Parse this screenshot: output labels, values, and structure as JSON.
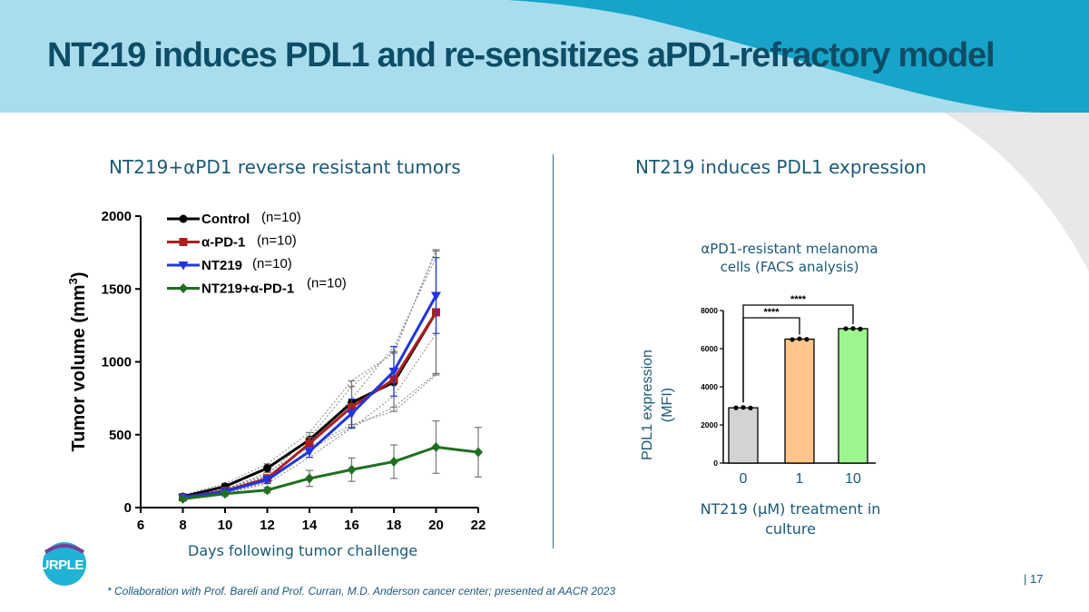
{
  "slide": {
    "title": "NT219 induces PDL1 and re-sensitizes aPD1-refractory model",
    "left_subtitle": "NT219+αPD1 reverse resistant tumors",
    "right_subtitle": "NT219 induces PDL1 expression",
    "footnote": "* Collaboration with Prof. Bareli and Prof. Curran, M.D. Anderson cancer center; presented at AACR 2023",
    "page_number": "| 17",
    "logo_text": "PURPLE",
    "colors": {
      "header_light": "#a9ddee",
      "header_teal": "#1a9ac0",
      "title": "#0e4d66",
      "text": "#1a5a7a",
      "grey_shape": "#e6e6e6"
    }
  },
  "chart_data": [
    {
      "type": "line",
      "xlabel": "Days following tumor challenge",
      "ylabel": "Tumor volume (mm",
      "ylabel_sup": "3",
      "ylabel_close": ")",
      "xlim": [
        6,
        22
      ],
      "ylim": [
        0,
        2000
      ],
      "xticks": [
        6,
        8,
        10,
        12,
        14,
        16,
        18,
        20,
        22
      ],
      "yticks": [
        0,
        500,
        1000,
        1500,
        2000
      ],
      "legend_position": "top-left",
      "series": [
        {
          "name": "Control",
          "n": "(n=10)",
          "color": "#000000",
          "marker": "circle",
          "x": [
            8,
            10,
            12,
            14,
            16,
            18,
            20
          ],
          "y": [
            75,
            145,
            270,
            465,
            720,
            860,
            1340
          ],
          "err": [
            10,
            20,
            30,
            50,
            150,
            200,
            430
          ]
        },
        {
          "name": "α-PD-1",
          "n": "(n=10)",
          "color": "#b01e1e",
          "marker": "square",
          "x": [
            8,
            10,
            12,
            14,
            16,
            18,
            20
          ],
          "y": [
            70,
            115,
            200,
            440,
            690,
            880,
            1340
          ],
          "err": [
            10,
            15,
            25,
            40,
            140,
            190,
            420
          ]
        },
        {
          "name": "NT219",
          "n": "(n=10)",
          "color": "#1f35e0",
          "marker": "triangle-down",
          "x": [
            8,
            10,
            12,
            14,
            16,
            18,
            20
          ],
          "y": [
            70,
            110,
            190,
            385,
            645,
            935,
            1455
          ],
          "err": [
            10,
            15,
            25,
            40,
            100,
            170,
            260
          ]
        },
        {
          "name": "NT219+α-PD-1",
          "n": "(n=10)",
          "color": "#1f6f1f",
          "marker": "diamond",
          "x": [
            8,
            10,
            12,
            14,
            16,
            18,
            20,
            22
          ],
          "y": [
            60,
            95,
            120,
            200,
            260,
            315,
            415,
            380
          ],
          "err": [
            10,
            15,
            20,
            55,
            80,
            115,
            180,
            170
          ]
        }
      ]
    },
    {
      "type": "bar",
      "title": "αPD1-resistant melanoma cells (FACS analysis)",
      "title_line1": "αPD1-resistant melanoma",
      "title_line2": "cells (FACS analysis)",
      "ylabel_line1": "PDL1 expression",
      "ylabel_line2": "(MFI)",
      "xlabel_line1": "NT219 (μM) treatment in",
      "xlabel_line2": "culture",
      "categories": [
        "0",
        "1",
        "10"
      ],
      "values": [
        2900,
        6500,
        7050
      ],
      "points": [
        [
          2900,
          2920,
          2890
        ],
        [
          6480,
          6520,
          6490
        ],
        [
          7050,
          7060,
          7030
        ]
      ],
      "colors": [
        "#d3d3d3",
        "#ffc58a",
        "#9cf58f"
      ],
      "ylim": [
        0,
        8000
      ],
      "yticks": [
        0,
        2000,
        4000,
        6000,
        8000
      ],
      "significance": [
        {
          "from": "0",
          "to": "1",
          "label": "****"
        },
        {
          "from": "0",
          "to": "10",
          "label": "****"
        }
      ]
    }
  ]
}
